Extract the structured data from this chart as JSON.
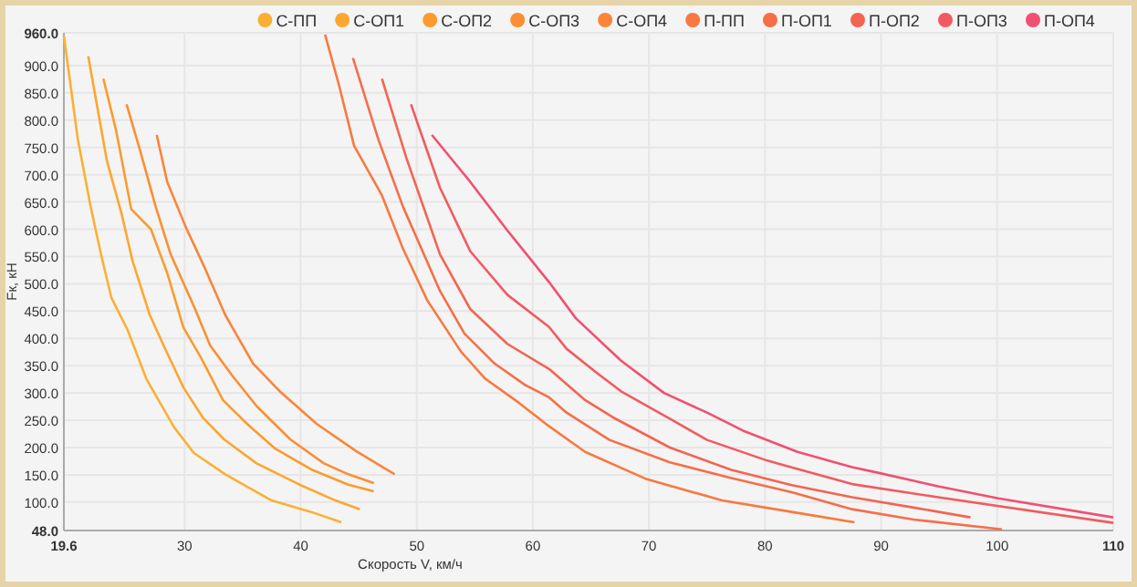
{
  "chart_data": {
    "type": "line",
    "xlabel": "Скорость V, км/ч",
    "ylabel": "Fк, кН",
    "legend": "top right",
    "grid": true,
    "marker": "none",
    "xlim": [
      19.6,
      110
    ],
    "xticks": [
      {
        "value": 19.6,
        "label": "19.6"
      },
      30,
      40,
      50,
      60,
      70,
      80,
      90,
      100,
      110
    ],
    "ylim": [
      48,
      960
    ],
    "yticks": [
      {
        "value": 48,
        "label": "48.0"
      },
      {
        "value": 100,
        "label": "100.0"
      },
      {
        "value": 150,
        "label": "150.0"
      },
      {
        "value": 200,
        "label": "200.0"
      },
      {
        "value": 250,
        "label": "250.0"
      },
      {
        "value": 300,
        "label": "300.0"
      },
      {
        "value": 350,
        "label": "350.0"
      },
      {
        "value": 400,
        "label": "400.0"
      },
      {
        "value": 450,
        "label": "450.0"
      },
      {
        "value": 500,
        "label": "500.0"
      },
      {
        "value": 550,
        "label": "550.0"
      },
      {
        "value": 600,
        "label": "600.0"
      },
      {
        "value": 650,
        "label": "650.0"
      },
      {
        "value": 700,
        "label": "700.0"
      },
      {
        "value": 750,
        "label": "750.0"
      },
      {
        "value": 800,
        "label": "800.0"
      },
      {
        "value": 850,
        "label": "850.0"
      },
      {
        "value": 900,
        "label": "900.0"
      },
      {
        "value": 960,
        "label": "960.0"
      }
    ],
    "series": [
      {
        "name": "С-ПП",
        "color": "#fbb034",
        "x": [
          19.6,
          20.8,
          21.9,
          22.8,
          23.7,
          25.1,
          26.7,
          29.1,
          30.8,
          33.5,
          37.5,
          40.9,
          43.5
        ],
        "values": [
          955,
          765,
          642,
          554,
          474,
          415,
          326,
          237,
          190,
          151,
          103,
          82,
          63
        ]
      },
      {
        "name": "С-ОП1",
        "color": "#fca72e",
        "x": [
          21.7,
          23.3,
          24.6,
          25.5,
          27.0,
          28.3,
          29.9,
          31.6,
          33.4,
          36.2,
          39.9,
          43.0,
          45.1
        ],
        "values": [
          917,
          726,
          626,
          543,
          443,
          382,
          310,
          254,
          215,
          171,
          132,
          103,
          87
        ]
      },
      {
        "name": "С-ОП2",
        "color": "#fb9b2e",
        "x": [
          23.0,
          24.1,
          25.4,
          27.1,
          28.5,
          29.9,
          31.4,
          33.3,
          35.4,
          37.8,
          40.9,
          44.1,
          46.3
        ],
        "values": [
          876,
          781,
          637,
          600,
          520,
          420,
          365,
          287,
          243,
          198,
          160,
          132,
          120
        ]
      },
      {
        "name": "С-ОП3",
        "color": "#fb8f33",
        "x": [
          25.0,
          26.2,
          27.5,
          28.8,
          30.9,
          32.2,
          34.1,
          36.2,
          39.1,
          42.0,
          44.1,
          46.3
        ],
        "values": [
          829,
          742,
          642,
          554,
          454,
          387,
          332,
          276,
          215,
          171,
          151,
          135
        ]
      },
      {
        "name": "С-ОП4",
        "color": "#fa8538",
        "x": [
          27.6,
          28.5,
          30.1,
          31.7,
          33.5,
          35.9,
          38.3,
          41.4,
          44.8,
          48.1
        ],
        "values": [
          773,
          687,
          604,
          531,
          443,
          354,
          301,
          243,
          193,
          151
        ]
      },
      {
        "name": "П-ПП",
        "color": "#f8793f",
        "x": [
          42.1,
          43.3,
          44.6,
          47.0,
          48.8,
          50.9,
          53.8,
          55.9,
          58.8,
          61.4,
          64.5,
          69.7,
          76.3,
          82.3,
          87.7
        ],
        "values": [
          957,
          864,
          753,
          662,
          565,
          470,
          376,
          326,
          282,
          239,
          192,
          143,
          103,
          82,
          63
        ]
      },
      {
        "name": "П-ОП1",
        "color": "#f66e48",
        "x": [
          44.5,
          46.7,
          48.8,
          52.0,
          54.1,
          56.7,
          59.3,
          61.4,
          62.9,
          66.6,
          71.8,
          77.1,
          82.3,
          87.5,
          92.8,
          100.4
        ],
        "values": [
          914,
          764,
          642,
          487,
          409,
          354,
          315,
          292,
          264,
          214,
          173,
          144,
          118,
          87,
          68,
          50
        ]
      },
      {
        "name": "П-ОП2",
        "color": "#f46452",
        "x": [
          47.0,
          49.1,
          52.0,
          54.6,
          57.8,
          61.4,
          64.5,
          67.1,
          71.8,
          77.1,
          82.3,
          87.5,
          92.8,
          97.7
        ],
        "values": [
          876,
          731,
          554,
          454,
          390,
          344,
          287,
          253,
          200,
          159,
          131,
          109,
          90,
          72
        ]
      },
      {
        "name": "П-ОП3",
        "color": "#f25a60",
        "x": [
          49.5,
          52.0,
          54.6,
          57.8,
          61.4,
          62.9,
          65.5,
          67.6,
          71.8,
          75.0,
          80.2,
          87.5,
          94.9,
          110
        ],
        "values": [
          829,
          676,
          560,
          480,
          421,
          381,
          337,
          303,
          253,
          214,
          176,
          133,
          109,
          62
        ]
      },
      {
        "name": "П-ОП4",
        "color": "#f05072",
        "x": [
          51.3,
          54.6,
          57.8,
          61.4,
          63.7,
          67.6,
          71.3,
          75.0,
          78.1,
          82.8,
          87.5,
          89.9,
          94.9,
          100.1,
          110
        ],
        "values": [
          773,
          687,
          598,
          503,
          437,
          359,
          300,
          264,
          231,
          192,
          164,
          153,
          129,
          107,
          72
        ]
      }
    ]
  }
}
